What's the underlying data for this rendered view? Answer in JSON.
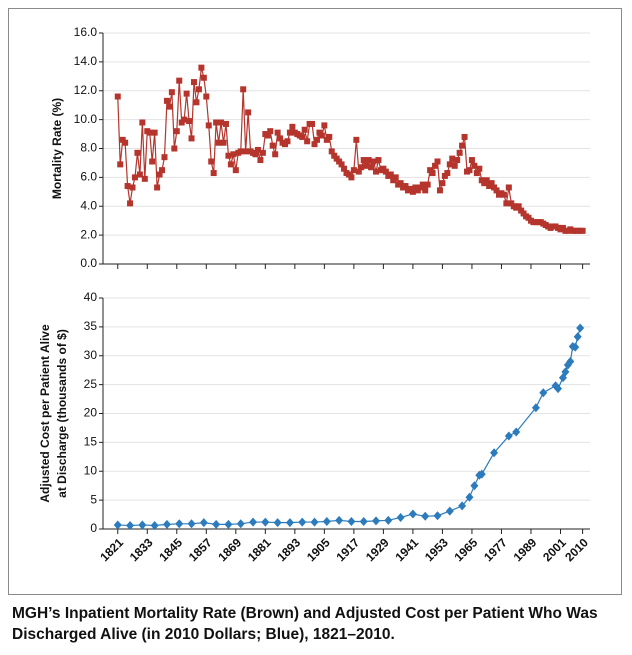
{
  "chart_data": [
    {
      "type": "line",
      "ylabel": "Mortality Rate (%)",
      "color": "#b5352d",
      "marker": "square",
      "grid": true,
      "xlim": [
        1815,
        2013
      ],
      "ylim": [
        0,
        16
      ],
      "yticks": [
        {
          "value": 0,
          "label": "0.0"
        },
        {
          "value": 2,
          "label": "2.0"
        },
        {
          "value": 4,
          "label": "4.0"
        },
        {
          "value": 6,
          "label": "6.0"
        },
        {
          "value": 8,
          "label": "8.0"
        },
        {
          "value": 10,
          "label": "10.0"
        },
        {
          "value": 12,
          "label": "12.0"
        },
        {
          "value": 14,
          "label": "14.0"
        },
        {
          "value": 16,
          "label": "16.0"
        }
      ],
      "x": [
        1821,
        1822,
        1823,
        1824,
        1825,
        1826,
        1827,
        1828,
        1829,
        1830,
        1831,
        1832,
        1833,
        1834,
        1835,
        1836,
        1837,
        1838,
        1839,
        1840,
        1841,
        1842,
        1843,
        1844,
        1845,
        1846,
        1847,
        1848,
        1849,
        1850,
        1851,
        1852,
        1853,
        1854,
        1855,
        1856,
        1857,
        1858,
        1859,
        1860,
        1861,
        1862,
        1863,
        1864,
        1865,
        1866,
        1867,
        1868,
        1869,
        1870,
        1871,
        1872,
        1873,
        1874,
        1875,
        1876,
        1877,
        1878,
        1879,
        1880,
        1881,
        1882,
        1883,
        1884,
        1885,
        1886,
        1887,
        1888,
        1889,
        1890,
        1891,
        1892,
        1893,
        1894,
        1895,
        1896,
        1897,
        1898,
        1899,
        1900,
        1901,
        1902,
        1903,
        1904,
        1905,
        1906,
        1907,
        1908,
        1909,
        1910,
        1911,
        1912,
        1913,
        1914,
        1915,
        1916,
        1917,
        1918,
        1919,
        1920,
        1921,
        1922,
        1923,
        1924,
        1925,
        1926,
        1927,
        1928,
        1929,
        1930,
        1931,
        1932,
        1933,
        1934,
        1935,
        1936,
        1937,
        1938,
        1939,
        1940,
        1941,
        1942,
        1943,
        1944,
        1945,
        1946,
        1947,
        1948,
        1949,
        1950,
        1951,
        1952,
        1953,
        1954,
        1955,
        1956,
        1957,
        1958,
        1959,
        1960,
        1961,
        1962,
        1963,
        1964,
        1965,
        1966,
        1967,
        1968,
        1969,
        1970,
        1971,
        1972,
        1973,
        1974,
        1975,
        1976,
        1977,
        1978,
        1979,
        1980,
        1981,
        1982,
        1983,
        1984,
        1985,
        1986,
        1987,
        1988,
        1989,
        1990,
        1991,
        1992,
        1993,
        1994,
        1995,
        1996,
        1997,
        1998,
        1999,
        2000,
        2001,
        2002,
        2003,
        2004,
        2005,
        2006,
        2007,
        2008,
        2009,
        2010
      ],
      "values": [
        11.6,
        6.9,
        8.6,
        8.4,
        5.4,
        4.2,
        5.3,
        6.0,
        7.7,
        6.2,
        9.8,
        5.9,
        9.2,
        9.1,
        7.1,
        9.1,
        5.3,
        6.2,
        6.5,
        7.4,
        11.3,
        10.9,
        11.9,
        8.0,
        9.2,
        12.7,
        9.8,
        10.0,
        11.8,
        9.9,
        8.7,
        12.6,
        11.2,
        12.1,
        13.6,
        12.9,
        11.6,
        9.6,
        7.1,
        6.3,
        9.8,
        8.4,
        9.8,
        8.4,
        9.7,
        7.5,
        6.9,
        7.6,
        6.5,
        7.7,
        7.8,
        12.1,
        7.8,
        10.5,
        7.8,
        7.7,
        7.6,
        7.9,
        7.2,
        7.7,
        9.0,
        8.9,
        9.2,
        8.2,
        7.6,
        9.1,
        8.7,
        8.4,
        8.3,
        8.5,
        9.1,
        9.5,
        9.1,
        9.0,
        8.9,
        8.8,
        9.3,
        8.5,
        9.7,
        9.7,
        8.3,
        8.6,
        9.1,
        8.9,
        9.6,
        8.6,
        8.8,
        7.8,
        7.5,
        7.3,
        7.1,
        6.9,
        6.6,
        6.3,
        6.2,
        6.0,
        6.5,
        8.6,
        6.4,
        6.7,
        7.2,
        6.8,
        7.2,
        6.7,
        7.1,
        6.4,
        7.2,
        6.5,
        6.6,
        6.4,
        6.1,
        6.2,
        5.8,
        6.0,
        5.5,
        5.6,
        5.3,
        5.4,
        5.1,
        5.2,
        5.0,
        5.3,
        5.1,
        5.3,
        5.5,
        5.1,
        5.5,
        6.5,
        6.3,
        6.8,
        7.1,
        5.1,
        5.6,
        6.1,
        6.3,
        6.9,
        7.3,
        6.8,
        7.2,
        7.7,
        8.2,
        8.8,
        6.4,
        6.5,
        7.2,
        6.8,
        6.3,
        6.6,
        5.8,
        5.6,
        5.8,
        5.4,
        5.6,
        5.3,
        5.1,
        4.8,
        4.9,
        4.8,
        4.2,
        5.3,
        4.2,
        4.0,
        3.9,
        4.0,
        3.7,
        3.5,
        3.3,
        3.2,
        3.0,
        2.9,
        2.9,
        2.9,
        2.9,
        2.8,
        2.7,
        2.6,
        2.5,
        2.6,
        2.6,
        2.5,
        2.4,
        2.5,
        2.3,
        2.3,
        2.4,
        2.3,
        2.3,
        2.3,
        2.3,
        2.3
      ]
    },
    {
      "type": "line",
      "ylabel": [
        "Adjusted Cost per Patient Alive",
        "at Discharge (thousands of $)"
      ],
      "color": "#2b7bbd",
      "marker": "diamond",
      "grid": true,
      "xlim": [
        1815,
        2013
      ],
      "xticks": [
        1821,
        1833,
        1845,
        1857,
        1869,
        1881,
        1893,
        1905,
        1917,
        1929,
        1941,
        1953,
        1965,
        1977,
        1989,
        2001,
        2010
      ],
      "ylim": [
        0,
        40
      ],
      "yticks": [
        0,
        5,
        10,
        15,
        20,
        25,
        30,
        35,
        40
      ],
      "x": [
        1821,
        1826,
        1831,
        1836,
        1841,
        1846,
        1851,
        1856,
        1861,
        1866,
        1871,
        1876,
        1881,
        1886,
        1891,
        1896,
        1901,
        1906,
        1911,
        1916,
        1921,
        1926,
        1931,
        1936,
        1941,
        1946,
        1951,
        1956,
        1961,
        1964,
        1966,
        1968,
        1969,
        1974,
        1980,
        1983,
        1991,
        1994,
        1999,
        2000,
        2002,
        2003,
        2004,
        2005,
        2006,
        2007,
        2008,
        2009
      ],
      "values": [
        0.7,
        0.6,
        0.7,
        0.6,
        0.8,
        0.9,
        0.9,
        1.1,
        0.8,
        0.8,
        0.9,
        1.2,
        1.2,
        1.1,
        1.1,
        1.2,
        1.2,
        1.3,
        1.5,
        1.3,
        1.3,
        1.4,
        1.5,
        2.0,
        2.6,
        2.2,
        2.3,
        3.1,
        4.0,
        5.5,
        7.5,
        9.3,
        9.5,
        13.2,
        16.1,
        16.8,
        21.0,
        23.6,
        24.8,
        24.3,
        26.2,
        27.2,
        28.4,
        29.0,
        31.6,
        31.5,
        33.3,
        34.8
      ]
    }
  ],
  "caption": "MGH’s Inpatient Mortality Rate (Brown) and Adjusted Cost per Patient Who Was Discharged Alive (in 2010 Dollars; Blue), 1821–2010."
}
